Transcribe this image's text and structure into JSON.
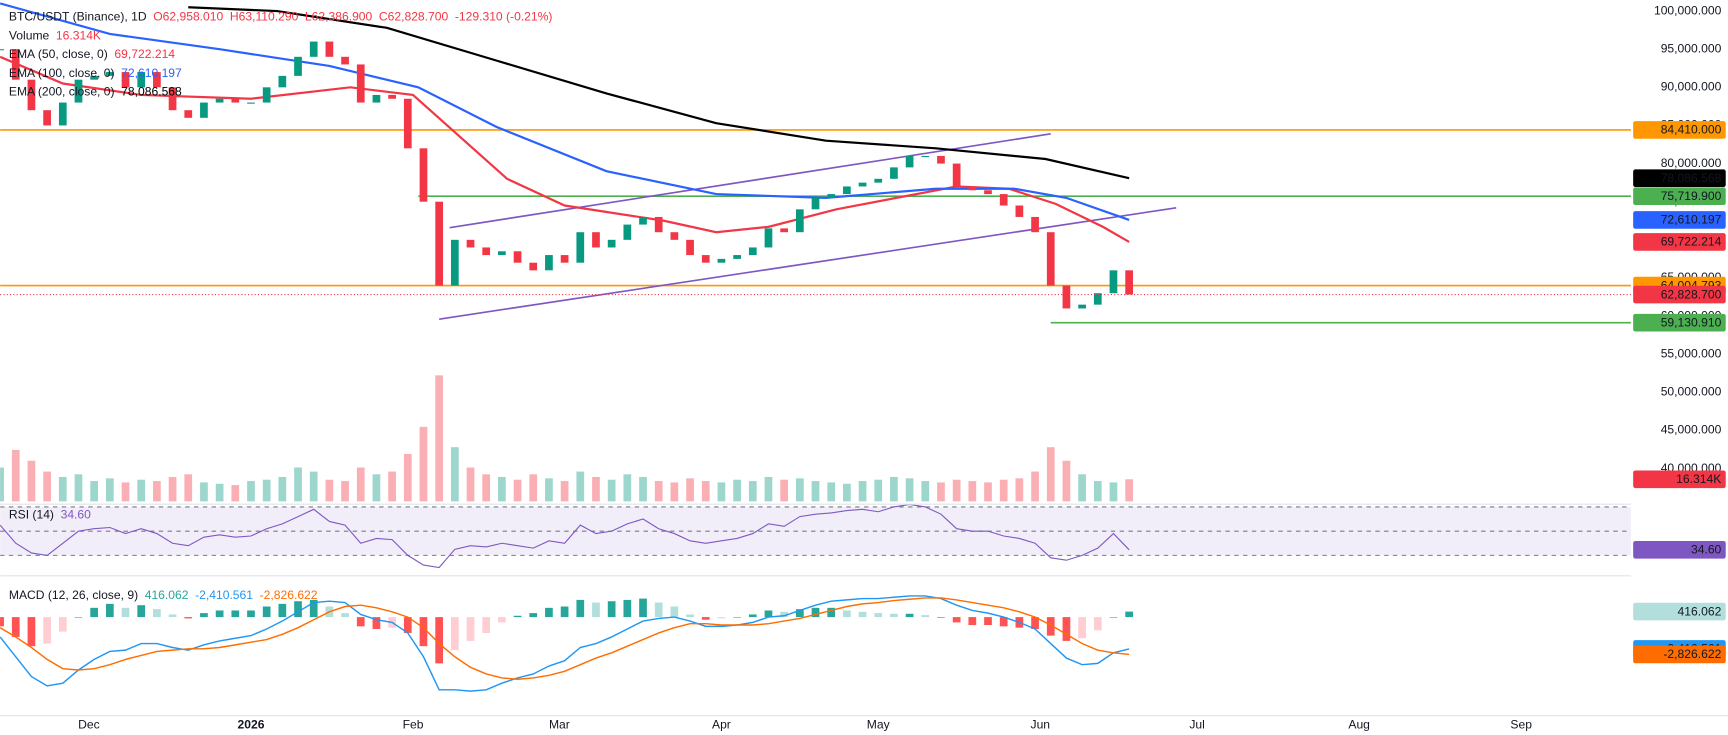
{
  "chart_data": {
    "type": "candlestick",
    "symbol": "BTC/USDT (Binance), 1D",
    "ohlc_labels": [
      "O62,958.010",
      "H63,110.290",
      "L62,386.900",
      "C62,828.700",
      "-129.310 (-0.21%)"
    ],
    "x": [
      -17,
      -14,
      -11,
      -8,
      -5,
      -2,
      1,
      4,
      7,
      10,
      13,
      16,
      19,
      22,
      25,
      28,
      31,
      34,
      37,
      40,
      43,
      46,
      49,
      52,
      55,
      58,
      61,
      64,
      67,
      70,
      73,
      76,
      79,
      82,
      85,
      88,
      91,
      94,
      97,
      100,
      103,
      106,
      109,
      112,
      115,
      118,
      121,
      124,
      127,
      130,
      133,
      136,
      139,
      142,
      145,
      148,
      151,
      154,
      157,
      160,
      163,
      166,
      169,
      172,
      175,
      178,
      181,
      184,
      187,
      190,
      193,
      196,
      199
    ],
    "close": [
      95000,
      91000,
      87000,
      85000,
      88000,
      91000,
      91500,
      92000,
      90000,
      92000,
      90000,
      87000,
      86000,
      88000,
      88500,
      88000,
      88000,
      90000,
      91500,
      94000,
      96000,
      94000,
      93000,
      88000,
      89000,
      88500,
      82000,
      75000,
      64000,
      70000,
      69000,
      68000,
      68500,
      67000,
      66000,
      68000,
      67000,
      71000,
      69000,
      70000,
      72000,
      73000,
      71000,
      70000,
      68000,
      67000,
      67500,
      68000,
      69000,
      71500,
      71000,
      74000,
      75500,
      76000,
      77000,
      77500,
      78000,
      79500,
      81000,
      81000,
      80000,
      77000,
      76500,
      76000,
      74500,
      73000,
      71000,
      64000,
      61000,
      61500,
      63000,
      66000,
      62828.7
    ],
    "close_label": "62,828.700",
    "up_color": "#089981",
    "down_color": "#f23645",
    "xlim": [
      -17,
      295
    ],
    "xticks": [
      {
        "value": 0,
        "label": "Dec"
      },
      {
        "value": 31,
        "label": "2026"
      },
      {
        "value": 62,
        "label": "Feb"
      },
      {
        "value": 90,
        "label": "Mar"
      },
      {
        "value": 121,
        "label": "Apr"
      },
      {
        "value": 151,
        "label": "May"
      },
      {
        "value": 182,
        "label": "Jun"
      },
      {
        "value": 212,
        "label": "Jul"
      },
      {
        "value": 243,
        "label": "Aug"
      },
      {
        "value": 274,
        "label": "Sep"
      }
    ],
    "ylim": [
      35700,
      101450
    ],
    "yticks": [
      {
        "value": 100000,
        "label": "100,000.000"
      },
      {
        "value": 95000,
        "label": "95,000.000"
      },
      {
        "value": 90000,
        "label": "90,000.000"
      },
      {
        "value": 85000,
        "label": "85,000.000"
      },
      {
        "value": 80000,
        "label": "80,000.000"
      },
      {
        "value": 75000,
        "label": "75,000.000"
      },
      {
        "value": 70000,
        "label": "70,000.000"
      },
      {
        "value": 65000,
        "label": "65,000.000"
      },
      {
        "value": 60000,
        "label": "60,000.000"
      },
      {
        "value": 55000,
        "label": "55,000.000"
      },
      {
        "value": 50000,
        "label": "50,000.000"
      },
      {
        "value": 45000,
        "label": "45,000.000"
      },
      {
        "value": 40000,
        "label": "40,000.000"
      }
    ],
    "volume": {
      "name": "Volume",
      "ylim": [
        0,
        370000
      ],
      "value_label": "16.314K",
      "values": [
        25000,
        38000,
        30000,
        22000,
        18000,
        20000,
        15000,
        17000,
        14000,
        16000,
        15000,
        18000,
        20000,
        14000,
        13000,
        12000,
        15000,
        16000,
        18000,
        25000,
        22000,
        16000,
        15000,
        25000,
        20000,
        22000,
        35000,
        55000,
        93000,
        40000,
        25000,
        20000,
        18000,
        16000,
        20000,
        17000,
        15000,
        22000,
        18000,
        16000,
        20000,
        18000,
        15000,
        14000,
        17000,
        15000,
        14000,
        16000,
        15000,
        18000,
        16000,
        17000,
        15000,
        14000,
        13000,
        15000,
        16000,
        18000,
        17000,
        15000,
        14000,
        16000,
        15000,
        14000,
        16000,
        17000,
        22000,
        40000,
        30000,
        20000,
        15000,
        14000,
        16314
      ]
    },
    "overlays": [
      {
        "name": "EMA (50, close, 0)",
        "color": "#f23645",
        "value_label": "69,722.214",
        "x": [
          -17,
          -5,
          10,
          31,
          50,
          62,
          80,
          91,
          110,
          120,
          130,
          143,
          156,
          166,
          176,
          185,
          194,
          199
        ],
        "values": [
          94000,
          90500,
          89000,
          88500,
          90000,
          89000,
          78000,
          74500,
          72500,
          71000,
          71700,
          74000,
          75700,
          77000,
          76700,
          74700,
          71700,
          69722.214
        ]
      },
      {
        "name": "EMA (100, close, 0)",
        "color": "#2962ff",
        "value_label": "72,610.197",
        "x": [
          -17,
          4,
          25,
          46,
          63,
          78,
          99,
          120,
          141,
          162,
          177,
          187,
          199
        ],
        "values": [
          101000,
          97000,
          95000,
          92800,
          90000,
          84800,
          79000,
          76000,
          75500,
          76700,
          76700,
          75500,
          72610.197
        ]
      },
      {
        "name": "EMA (200, close, 0)",
        "color": "#000000",
        "value_label": "78,086.568",
        "x": [
          19,
          36,
          57,
          78,
          99,
          120,
          141,
          162,
          183,
          199
        ],
        "values": [
          100500,
          100000,
          97800,
          93500,
          89200,
          85300,
          83000,
          82000,
          80600,
          78086.568
        ]
      }
    ],
    "hlines": [
      {
        "value": 84410,
        "label": "84,410.000",
        "color": "#ff9800"
      },
      {
        "value": 75719.9,
        "label": "75,719.900",
        "color": "#4caf50",
        "start": 63
      },
      {
        "value": 64004.793,
        "label": "64,004.793",
        "color": "#ff9800"
      },
      {
        "value": 59130.91,
        "label": "59,130.910",
        "color": "#4caf50",
        "start": 184
      }
    ],
    "trendlines": [
      {
        "color": "#7e57c2",
        "x": [
          67,
          208
        ],
        "values": [
          59600,
          74200
        ]
      },
      {
        "color": "#7e57c2",
        "x": [
          69,
          184
        ],
        "values": [
          71600,
          83900
        ]
      }
    ],
    "rsi": {
      "name": "RSI (14)",
      "color": "#7e57c2",
      "value_label": "34.60",
      "ylim": [
        20,
        80
      ],
      "levels": [
        70,
        50,
        30
      ],
      "values": [
        55,
        40,
        32,
        30,
        40,
        50,
        52,
        53,
        48,
        52,
        48,
        40,
        38,
        45,
        47,
        45,
        46,
        52,
        56,
        62,
        68,
        58,
        55,
        40,
        44,
        43,
        30,
        22,
        20,
        35,
        38,
        37,
        40,
        38,
        36,
        42,
        40,
        55,
        48,
        50,
        56,
        60,
        52,
        48,
        42,
        40,
        42,
        44,
        48,
        56,
        54,
        62,
        64,
        65,
        67,
        68,
        66,
        70,
        72,
        70,
        64,
        52,
        50,
        50,
        46,
        44,
        40,
        28,
        26,
        30,
        36,
        48,
        34.6
      ]
    },
    "macd": {
      "name": "MACD (12, 26, close, 9)",
      "ylim": [
        -8000,
        3000
      ],
      "histogram": {
        "value_label": "416.062",
        "values": [
          -700,
          -1500,
          -2200,
          -2000,
          -1100,
          0,
          700,
          1000,
          700,
          900,
          600,
          200,
          -100,
          300,
          500,
          500,
          500,
          800,
          1000,
          1200,
          1300,
          800,
          300,
          -700,
          -900,
          -800,
          -1200,
          -2200,
          -3500,
          -2500,
          -1800,
          -1200,
          -400,
          100,
          300,
          700,
          800,
          1300,
          1100,
          1200,
          1300,
          1400,
          1100,
          800,
          200,
          -200,
          -100,
          0,
          200,
          500,
          400,
          600,
          700,
          700,
          500,
          400,
          300,
          250,
          250,
          150,
          -50,
          -400,
          -600,
          -600,
          -700,
          -800,
          -900,
          -1400,
          -1800,
          -1600,
          -1000,
          0,
          416.062
        ]
      },
      "macd": {
        "color": "#2196f3",
        "value_label": "-2,410.561",
        "values": [
          -1500,
          -3000,
          -4500,
          -5200,
          -5000,
          -4000,
          -3200,
          -2600,
          -2500,
          -2000,
          -2000,
          -2300,
          -2500,
          -2100,
          -1800,
          -1600,
          -1400,
          -900,
          -300,
          400,
          1100,
          1200,
          1100,
          200,
          -200,
          -400,
          -1200,
          -3000,
          -5500,
          -5500,
          -5600,
          -5500,
          -5000,
          -4600,
          -4300,
          -3700,
          -3300,
          -2300,
          -2000,
          -1500,
          -900,
          -300,
          -100,
          0,
          -300,
          -700,
          -700,
          -600,
          -400,
          0,
          100,
          500,
          900,
          1200,
          1300,
          1400,
          1400,
          1500,
          1600,
          1600,
          1400,
          900,
          500,
          300,
          0,
          -400,
          -900,
          -2000,
          -3100,
          -3600,
          -3500,
          -2700,
          -2410.561
        ]
      },
      "signal": {
        "color": "#ff6d00",
        "value_label": "-2,826.622",
        "values": [
          -800,
          -1500,
          -2300,
          -3200,
          -3900,
          -4000,
          -3900,
          -3600,
          -3200,
          -2900,
          -2600,
          -2500,
          -2400,
          -2400,
          -2300,
          -2100,
          -1900,
          -1700,
          -1300,
          -800,
          -200,
          400,
          800,
          900,
          700,
          400,
          0,
          -800,
          -2000,
          -3000,
          -3800,
          -4300,
          -4600,
          -4700,
          -4600,
          -4400,
          -4100,
          -3600,
          -3100,
          -2700,
          -2200,
          -1700,
          -1200,
          -800,
          -500,
          -500,
          -600,
          -600,
          -600,
          -500,
          -300,
          -100,
          200,
          500,
          800,
          1000,
          1100,
          1250,
          1350,
          1450,
          1450,
          1300,
          1100,
          900,
          700,
          400,
          0,
          -600,
          -1300,
          -2000,
          -2500,
          -2700,
          -2826.622
        ]
      }
    }
  }
}
